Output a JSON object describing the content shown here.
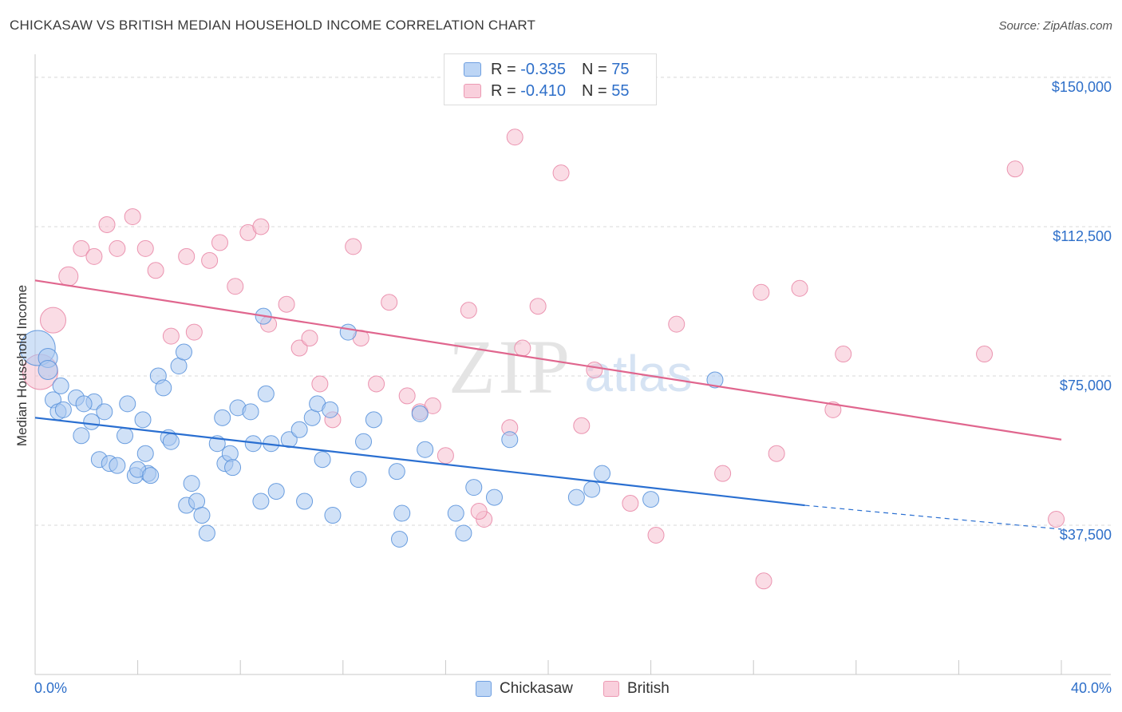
{
  "title": "CHICKASAW VS BRITISH MEDIAN HOUSEHOLD INCOME CORRELATION CHART",
  "source": "Source: ZipAtlas.com",
  "watermark": {
    "zip": "ZIP",
    "atlas": "atlas"
  },
  "legend": {
    "rows": [
      {
        "r_label": "R =",
        "r_value": "-0.335",
        "n_label": "N =",
        "n_value": "75"
      },
      {
        "r_label": "R =",
        "r_value": "-0.410",
        "n_label": "N =",
        "n_value": "55"
      }
    ]
  },
  "bottom_legend": [
    "Chickasaw",
    "British"
  ],
  "colors": {
    "chickasaw_fill": "#a9c8f0",
    "chickasaw_stroke": "#5b93dc",
    "chickasaw_line": "#2a6fd1",
    "british_fill": "#f6bfd0",
    "british_stroke": "#e98aa8",
    "british_line": "#e0668e",
    "tick_label": "#2e6fc9",
    "grid": "#d8d8d8"
  },
  "chart_data": {
    "type": "scatter",
    "title": "CHICKASAW VS BRITISH MEDIAN HOUSEHOLD INCOME CORRELATION CHART",
    "xlabel": "",
    "ylabel": "Median Household Income",
    "xlim": [
      0,
      40
    ],
    "ylim": [
      0,
      155000
    ],
    "x_tick_labels": [
      "0.0%",
      "40.0%"
    ],
    "y_ticks": [
      37500,
      75000,
      112500,
      150000
    ],
    "y_tick_labels": [
      "$37,500",
      "$75,000",
      "$112,500",
      "$150,000"
    ],
    "grid": true,
    "legend_position": "top-center",
    "series": [
      {
        "name": "Chickasaw",
        "r": -0.335,
        "n": 75,
        "trend": {
          "x": [
            0,
            30
          ],
          "y": [
            64500,
            42500
          ],
          "dashed_to": [
            40,
            36500
          ]
        },
        "points": [
          [
            0.1,
            82000,
            22
          ],
          [
            0.5,
            79500,
            12
          ],
          [
            0.5,
            76500,
            12
          ],
          [
            0.7,
            69000,
            10
          ],
          [
            1.0,
            72500,
            10
          ],
          [
            0.9,
            66000,
            10
          ],
          [
            1.1,
            66500,
            10
          ],
          [
            1.6,
            69500,
            10
          ],
          [
            1.8,
            60000,
            10
          ],
          [
            2.3,
            68500,
            10
          ],
          [
            1.9,
            68000,
            10
          ],
          [
            2.2,
            63500,
            10
          ],
          [
            2.7,
            66000,
            10
          ],
          [
            2.5,
            54000,
            10
          ],
          [
            2.9,
            53000,
            10
          ],
          [
            3.2,
            52500,
            10
          ],
          [
            3.5,
            60000,
            10
          ],
          [
            3.6,
            68000,
            10
          ],
          [
            4.2,
            64000,
            10
          ],
          [
            4.3,
            55500,
            10
          ],
          [
            4.4,
            50500,
            10
          ],
          [
            3.9,
            50000,
            10
          ],
          [
            4.0,
            51500,
            10
          ],
          [
            4.5,
            50000,
            10
          ],
          [
            4.8,
            75000,
            10
          ],
          [
            5.0,
            72000,
            10
          ],
          [
            5.2,
            59500,
            10
          ],
          [
            5.3,
            58500,
            10
          ],
          [
            5.6,
            77500,
            10
          ],
          [
            5.8,
            81000,
            10
          ],
          [
            6.1,
            48000,
            10
          ],
          [
            5.9,
            42500,
            10
          ],
          [
            6.3,
            43500,
            10
          ],
          [
            6.5,
            40000,
            10
          ],
          [
            6.7,
            35500,
            10
          ],
          [
            7.1,
            58000,
            10
          ],
          [
            7.3,
            64500,
            10
          ],
          [
            7.4,
            53000,
            10
          ],
          [
            7.6,
            55500,
            10
          ],
          [
            7.7,
            52000,
            10
          ],
          [
            7.9,
            67000,
            10
          ],
          [
            8.4,
            66000,
            10
          ],
          [
            8.5,
            58000,
            10
          ],
          [
            8.8,
            43500,
            10
          ],
          [
            8.9,
            90000,
            10
          ],
          [
            9.2,
            58000,
            10
          ],
          [
            9.0,
            70500,
            10
          ],
          [
            9.4,
            46000,
            10
          ],
          [
            9.9,
            59000,
            10
          ],
          [
            10.3,
            61500,
            10
          ],
          [
            10.5,
            43500,
            10
          ],
          [
            10.8,
            64500,
            10
          ],
          [
            11.0,
            68000,
            10
          ],
          [
            11.5,
            66500,
            10
          ],
          [
            11.2,
            54000,
            10
          ],
          [
            11.6,
            40000,
            10
          ],
          [
            12.2,
            86000,
            10
          ],
          [
            12.6,
            49000,
            10
          ],
          [
            12.8,
            58500,
            10
          ],
          [
            13.2,
            64000,
            10
          ],
          [
            14.1,
            51000,
            10
          ],
          [
            14.2,
            34000,
            10
          ],
          [
            14.3,
            40500,
            10
          ],
          [
            15.2,
            56500,
            10
          ],
          [
            15.0,
            65500,
            10
          ],
          [
            16.4,
            40500,
            10
          ],
          [
            16.7,
            35500,
            10
          ],
          [
            17.1,
            47000,
            10
          ],
          [
            17.9,
            44500,
            10
          ],
          [
            18.5,
            59000,
            10
          ],
          [
            21.1,
            44500,
            10
          ],
          [
            21.7,
            46500,
            10
          ],
          [
            22.1,
            50500,
            10
          ],
          [
            26.5,
            74000,
            10
          ],
          [
            24.0,
            44000,
            10
          ]
        ]
      },
      {
        "name": "British",
        "r": -0.41,
        "n": 55,
        "trend": {
          "x": [
            0,
            40
          ],
          "y": [
            99000,
            59000
          ]
        },
        "points": [
          [
            0.2,
            76000,
            22
          ],
          [
            0.7,
            89000,
            16
          ],
          [
            1.3,
            100000,
            12
          ],
          [
            1.8,
            107000,
            10
          ],
          [
            2.3,
            105000,
            10
          ],
          [
            2.8,
            113000,
            10
          ],
          [
            3.2,
            107000,
            10
          ],
          [
            3.8,
            115000,
            10
          ],
          [
            4.3,
            107000,
            10
          ],
          [
            4.7,
            101500,
            10
          ],
          [
            5.3,
            85000,
            10
          ],
          [
            5.9,
            105000,
            10
          ],
          [
            6.2,
            86000,
            10
          ],
          [
            6.8,
            104000,
            10
          ],
          [
            7.2,
            108500,
            10
          ],
          [
            7.8,
            97500,
            10
          ],
          [
            8.3,
            111000,
            10
          ],
          [
            8.8,
            112500,
            10
          ],
          [
            9.1,
            88000,
            10
          ],
          [
            9.8,
            93000,
            10
          ],
          [
            10.3,
            82000,
            10
          ],
          [
            10.7,
            84500,
            10
          ],
          [
            11.1,
            73000,
            10
          ],
          [
            11.6,
            64000,
            10
          ],
          [
            12.4,
            107500,
            10
          ],
          [
            12.7,
            84500,
            10
          ],
          [
            13.3,
            73000,
            10
          ],
          [
            13.8,
            93500,
            10
          ],
          [
            14.5,
            70000,
            10
          ],
          [
            15.0,
            66000,
            10
          ],
          [
            15.5,
            67500,
            10
          ],
          [
            16.0,
            55000,
            10
          ],
          [
            16.9,
            91500,
            10
          ],
          [
            17.5,
            39000,
            10
          ],
          [
            17.3,
            41000,
            10
          ],
          [
            18.7,
            135000,
            10
          ],
          [
            18.5,
            62000,
            10
          ],
          [
            19.0,
            82000,
            10
          ],
          [
            19.6,
            92500,
            10
          ],
          [
            20.5,
            126000,
            10
          ],
          [
            21.3,
            62500,
            10
          ],
          [
            21.8,
            76500,
            10
          ],
          [
            23.2,
            43000,
            10
          ],
          [
            24.2,
            35000,
            10
          ],
          [
            25.0,
            88000,
            10
          ],
          [
            26.8,
            50500,
            10
          ],
          [
            28.3,
            96000,
            10
          ],
          [
            28.4,
            23500,
            10
          ],
          [
            28.9,
            55500,
            10
          ],
          [
            29.8,
            97000,
            10
          ],
          [
            31.1,
            66500,
            10
          ],
          [
            31.5,
            80500,
            10
          ],
          [
            37.0,
            80500,
            10
          ],
          [
            38.2,
            127000,
            10
          ],
          [
            39.8,
            39000,
            10
          ]
        ]
      }
    ]
  }
}
